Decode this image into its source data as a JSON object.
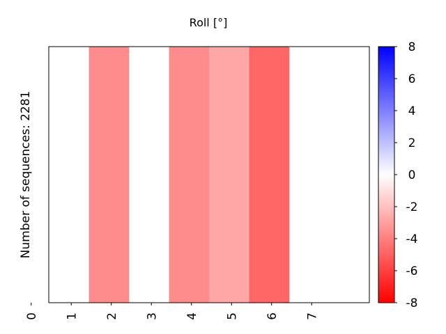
{
  "chart_data": {
    "type": "heatmap",
    "title": "Roll [°]",
    "xlabel": "",
    "ylabel": "Number of sequences: 2281",
    "x_ticks": [
      "0",
      "1",
      "2",
      "3",
      "4",
      "5",
      "6",
      "7"
    ],
    "x_range": [
      0,
      8
    ],
    "cells": [
      {
        "x": 0,
        "value": 0
      },
      {
        "x": 1,
        "value": -3.6
      },
      {
        "x": 2,
        "value": 0
      },
      {
        "x": 3,
        "value": -3.6
      },
      {
        "x": 4,
        "value": -2.8
      },
      {
        "x": 5,
        "value": -4.8
      },
      {
        "x": 6,
        "value": 0
      },
      {
        "x": 7,
        "value": 0
      }
    ],
    "colorbar": {
      "min": -8,
      "max": 8,
      "ticks": [
        "8",
        "6",
        "4",
        "2",
        "0",
        "-2",
        "-4",
        "-6",
        "-8"
      ],
      "colors": {
        "low": "#ff0000",
        "mid": "#ffffff",
        "high": "#0000ff"
      }
    },
    "grid": false
  }
}
